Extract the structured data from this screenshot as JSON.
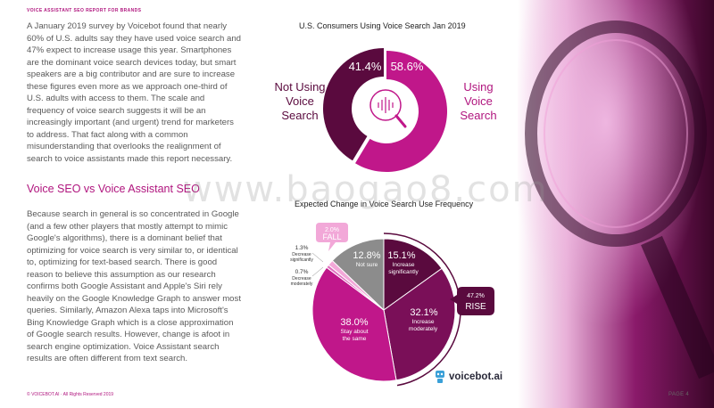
{
  "header": {
    "title": "VOICE ASSISTANT SEO REPORT FOR BRANDS"
  },
  "body": {
    "paragraph1": "A January 2019 survey by Voicebot found that nearly 60% of U.S. adults say they have used voice search and 47% expect to increase usage this year. Smartphones are the dominant voice search devices today, but smart speakers are a big contributor and are sure to increase these figures even more as we approach one-third of U.S. adults with access to them. The scale and frequency of voice search suggests it will be an increasingly important (and urgent) trend for marketers to address. That fact along with a common misunderstanding that overlooks the realignment of search to voice assistants made this report necessary.",
    "heading": "Voice SEO vs Voice Assistant SEO",
    "paragraph2": "Because search in general is so concentrated in Google (and a few other players that mostly attempt to mimic Google's algorithms), there is a dominant belief that optimizing for voice search is very similar to, or identical to, optimizing for text-based search. There is good reason to believe this assumption as our research confirms both Google Assistant and Apple's Siri rely heavily on the Google Knowledge Graph to answer most queries. Similarly, Amazon Alexa taps into Microsoft's Bing Knowledge Graph which is a close approximation of Google search results. However, change is afoot in search engine optimization. Voice Assistant search results are often different from text search."
  },
  "watermark": "www.baogao8.com",
  "chart_data": [
    {
      "type": "pie",
      "title": "U.S. Consumers Using Voice Search Jan 2019",
      "categories": [
        "Using Voice Search",
        "Not Using Voice Search"
      ],
      "values": [
        58.6,
        41.4
      ],
      "value_labels": [
        "58.6%",
        "41.4%"
      ],
      "category_label_lines": [
        [
          "Using",
          "Voice",
          "Search"
        ],
        [
          "Not Using",
          "Voice",
          "Search"
        ]
      ],
      "colors": [
        "#c0178a",
        "#5a0a3e"
      ],
      "donut": true
    },
    {
      "type": "pie",
      "title": "Expected Change in Voice Search Use Frequency",
      "categories": [
        "Increase significantly",
        "Increase moderately",
        "Stay about the same",
        "Decrease moderately",
        "Decrease significantly",
        "Not sure"
      ],
      "values": [
        15.1,
        32.1,
        38.0,
        0.7,
        1.3,
        12.8
      ],
      "value_labels": [
        "15.1%",
        "32.1%",
        "38.0%",
        "0.7%",
        "1.3%",
        "12.8%"
      ],
      "category_label_lines": [
        [
          "Increase",
          "significantly"
        ],
        [
          "Increase",
          "moderately"
        ],
        [
          "Stay about",
          "the same"
        ],
        [
          "Decrease",
          "moderately"
        ],
        [
          "Decrease",
          "significantly"
        ],
        [
          "Not sure"
        ]
      ],
      "colors": [
        "#5a0a3e",
        "#7a0f58",
        "#c0178a",
        "#e070c0",
        "#f2a8d8",
        "#8c8c8c"
      ],
      "callouts": {
        "rise": {
          "value": "47.2%",
          "label": "RISE"
        },
        "fall": {
          "value": "2.0%",
          "label": "FALL"
        }
      }
    }
  ],
  "footer": {
    "copyright": "© VOICEBOT.AI · All Rights Reserved 2019",
    "page": "PAGE 4"
  },
  "logo": {
    "text": "voicebot.ai",
    "icon": "robot-icon"
  }
}
